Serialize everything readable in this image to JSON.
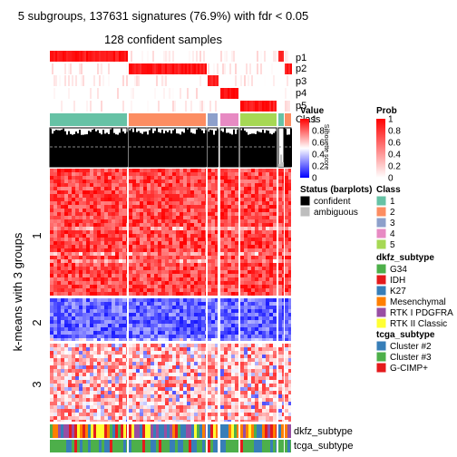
{
  "title": "5 subgroups, 137631 signatures (76.9%) with fdr < 0.05",
  "subtitle": "128 confident samples",
  "row_title": "k-means with 3 groups",
  "row_groups": [
    "1",
    "2",
    "3"
  ],
  "top_annotation_labels": [
    "p1",
    "p2",
    "p3",
    "p4",
    "p5",
    "Class"
  ],
  "silhouette_label": "Silhouette score",
  "bottom_annotation_labels": [
    "dkfz_subtype",
    "tcga_subtype"
  ],
  "legends": {
    "value": {
      "title": "Value",
      "ticks": [
        "1",
        "0.8",
        "0.6",
        "0.4",
        "0.2",
        "0"
      ]
    },
    "prob": {
      "title": "Prob",
      "ticks": [
        "1",
        "0.8",
        "0.6",
        "0.4",
        "0.2",
        "0"
      ]
    },
    "status": {
      "title": "Status (barplots)",
      "items": [
        {
          "label": "confident",
          "color": "#000000"
        },
        {
          "label": "ambiguous",
          "color": "#bebebe"
        }
      ]
    },
    "class": {
      "title": "Class",
      "items": [
        {
          "label": "1",
          "color": "#66c2a5"
        },
        {
          "label": "2",
          "color": "#fc8d62"
        },
        {
          "label": "3",
          "color": "#8da0cb"
        },
        {
          "label": "4",
          "color": "#e78ac3"
        },
        {
          "label": "5",
          "color": "#a6d854"
        }
      ]
    },
    "dkfz": {
      "title": "dkfz_subtype",
      "items": [
        {
          "label": "G34",
          "color": "#4daf4a"
        },
        {
          "label": "IDH",
          "color": "#e41a1c"
        },
        {
          "label": "K27",
          "color": "#377eb8"
        },
        {
          "label": "Mesenchymal",
          "color": "#ff7f00"
        },
        {
          "label": "RTK I PDGFRA",
          "color": "#984ea3"
        },
        {
          "label": "RTK II Classic",
          "color": "#ffff33"
        }
      ]
    },
    "tcga": {
      "title": "tcga_subtype",
      "items": [
        {
          "label": "Cluster #2",
          "color": "#377eb8"
        },
        {
          "label": "Cluster #3",
          "color": "#4daf4a"
        },
        {
          "label": "G-CIMP+",
          "color": "#e41a1c"
        }
      ]
    }
  },
  "chart_data": {
    "type": "heatmap",
    "title": "5 subgroups, 137631 signatures (76.9%) with fdr < 0.05",
    "subtitle": "128 confident samples",
    "row_title": "k-means with 3 groups",
    "row_groups": [
      "1",
      "2",
      "3"
    ],
    "column_classes": [
      "1",
      "2",
      "3",
      "4",
      "5"
    ],
    "value_range": [
      0,
      1
    ],
    "prob_range": [
      0,
      1
    ]
  }
}
